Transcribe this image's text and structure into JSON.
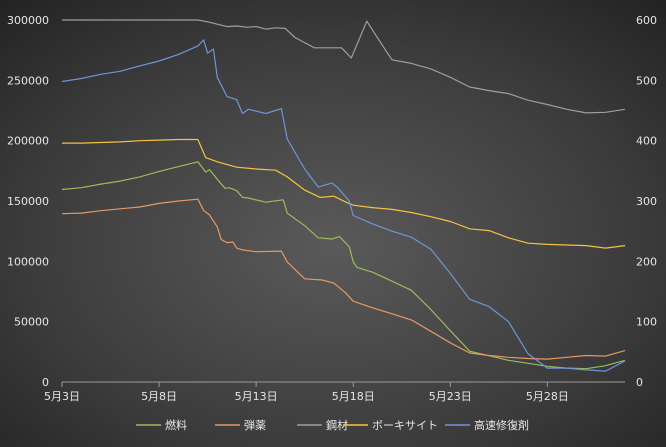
{
  "chart_data": {
    "type": "line",
    "title": "",
    "xlabel": "",
    "ylabel": "",
    "x_start": "5/3",
    "x_end": "6/1",
    "x_ticks": [
      "5月3日",
      "5月8日",
      "5月13日",
      "5月18日",
      "5月23日",
      "5月28日"
    ],
    "y_left_lim": [
      0,
      300000
    ],
    "y_left_ticks": [
      "0",
      "50000",
      "100000",
      "150000",
      "200000",
      "250000",
      "300000"
    ],
    "y_right_lim": [
      0,
      600
    ],
    "y_right_ticks": [
      "0",
      "100",
      "200",
      "300",
      "400",
      "500",
      "600"
    ],
    "grid": false,
    "legend_position": "bottom",
    "series": [
      {
        "name": "燃料",
        "axis": "left",
        "color": "#9bbb59",
        "points": [
          [
            "5/3",
            159500
          ],
          [
            "5/4",
            161000
          ],
          [
            "5/5",
            164000
          ],
          [
            "5/6",
            166500
          ],
          [
            "5/7",
            170000
          ],
          [
            "5/8",
            174500
          ],
          [
            "5/9",
            178500
          ],
          [
            "5/10",
            182500
          ],
          [
            "5/10.4",
            174000
          ],
          [
            "5/10.6",
            176000
          ],
          [
            "5/11",
            168000
          ],
          [
            "5/11.4",
            160500
          ],
          [
            "5/11.6",
            161000
          ],
          [
            "5/12",
            158500
          ],
          [
            "5/12.3",
            153000
          ],
          [
            "5/12.6",
            152500
          ],
          [
            "5/13.5",
            149000
          ],
          [
            "5/14.4",
            151000
          ],
          [
            "5/14.6",
            140000
          ],
          [
            "5/15.5",
            129500
          ],
          [
            "5/16.2",
            119500
          ],
          [
            "5/16.9",
            118500
          ],
          [
            "5/17.3",
            120500
          ],
          [
            "5/17.8",
            112000
          ],
          [
            "5/18",
            99500
          ],
          [
            "5/18.2",
            95000
          ],
          [
            "5/19",
            91000
          ],
          [
            "5/20",
            83500
          ],
          [
            "5/21",
            76000
          ],
          [
            "5/22",
            60000
          ],
          [
            "5/23",
            42500
          ],
          [
            "5/24",
            25500
          ],
          [
            "5/26",
            18000
          ],
          [
            "5/28",
            13000
          ],
          [
            "5/29",
            11500
          ],
          [
            "5/30",
            11000
          ],
          [
            "5/31",
            13500
          ],
          [
            "6/1",
            18000
          ]
        ]
      },
      {
        "name": "弾薬",
        "axis": "left",
        "color": "#e59866",
        "points": [
          [
            "5/3",
            139500
          ],
          [
            "5/4",
            140000
          ],
          [
            "5/5",
            142000
          ],
          [
            "5/6",
            143500
          ],
          [
            "5/7",
            145000
          ],
          [
            "5/8",
            148000
          ],
          [
            "5/9",
            150000
          ],
          [
            "5/10",
            151500
          ],
          [
            "5/10.3",
            142000
          ],
          [
            "5/10.6",
            138500
          ],
          [
            "5/11",
            128500
          ],
          [
            "5/11.2",
            118000
          ],
          [
            "5/11.5",
            115500
          ],
          [
            "5/11.8",
            116000
          ],
          [
            "5/12",
            111000
          ],
          [
            "5/12.3",
            109500
          ],
          [
            "5/13",
            108000
          ],
          [
            "5/14.3",
            108500
          ],
          [
            "5/14.6",
            99500
          ],
          [
            "5/15.5",
            85500
          ],
          [
            "5/16.4",
            84500
          ],
          [
            "5/17",
            82000
          ],
          [
            "5/17.6",
            74000
          ],
          [
            "5/18",
            67000
          ],
          [
            "5/19",
            61500
          ],
          [
            "5/20",
            56500
          ],
          [
            "5/21",
            51500
          ],
          [
            "5/22",
            42000
          ],
          [
            "5/23",
            32500
          ],
          [
            "5/24",
            24000
          ],
          [
            "5/25",
            22000
          ],
          [
            "5/26",
            20500
          ],
          [
            "5/27",
            19500
          ],
          [
            "5/28",
            19000
          ],
          [
            "5/29",
            20500
          ],
          [
            "5/30",
            22000
          ],
          [
            "5/31",
            21500
          ],
          [
            "6/1",
            26000
          ]
        ]
      },
      {
        "name": "鋼材",
        "axis": "left",
        "color": "#9e9e9e",
        "points": [
          [
            "5/3",
            300000
          ],
          [
            "5/4",
            300000
          ],
          [
            "5/5",
            300000
          ],
          [
            "5/6",
            300000
          ],
          [
            "5/7",
            300000
          ],
          [
            "5/8",
            300000
          ],
          [
            "5/9",
            300000
          ],
          [
            "5/10",
            300000
          ],
          [
            "5/10.5",
            298500
          ],
          [
            "5/11",
            296500
          ],
          [
            "5/11.5",
            294500
          ],
          [
            "5/12",
            295000
          ],
          [
            "5/12.5",
            294000
          ],
          [
            "5/13",
            294500
          ],
          [
            "5/13.5",
            292500
          ],
          [
            "5/14",
            293500
          ],
          [
            "5/14.5",
            293000
          ],
          [
            "5/15",
            285500
          ],
          [
            "5/16",
            277000
          ],
          [
            "5/17",
            277000
          ],
          [
            "5/17.4",
            277000
          ],
          [
            "5/17.9",
            268500
          ],
          [
            "5/18.7",
            299000
          ],
          [
            "5/19.4",
            281500
          ],
          [
            "5/20",
            267000
          ],
          [
            "5/21",
            264000
          ],
          [
            "5/22",
            259500
          ],
          [
            "5/23",
            252500
          ],
          [
            "5/24",
            244500
          ],
          [
            "5/25",
            241500
          ],
          [
            "5/26",
            239000
          ],
          [
            "5/27",
            233500
          ],
          [
            "5/28",
            230000
          ],
          [
            "5/29",
            226000
          ],
          [
            "5/30",
            223000
          ],
          [
            "5/31",
            223500
          ],
          [
            "6/1",
            226000
          ]
        ]
      },
      {
        "name": "ボーキサイト",
        "axis": "right",
        "color": "#f5c242",
        "points": [
          [
            "5/3",
            396
          ],
          [
            "5/4",
            396
          ],
          [
            "5/5",
            397
          ],
          [
            "5/6",
            398
          ],
          [
            "5/7",
            400
          ],
          [
            "5/8",
            401
          ],
          [
            "5/9",
            402
          ],
          [
            "5/10",
            402
          ],
          [
            "5/10.4",
            372
          ],
          [
            "5/11",
            365
          ],
          [
            "5/12",
            356
          ],
          [
            "5/13",
            353
          ],
          [
            "5/14",
            351
          ],
          [
            "5/14.6",
            340
          ],
          [
            "5/15.5",
            318
          ],
          [
            "5/16.3",
            306
          ],
          [
            "5/17",
            308
          ],
          [
            "5/17.7",
            297
          ],
          [
            "5/18",
            293
          ],
          [
            "5/19",
            289
          ],
          [
            "5/20",
            286
          ],
          [
            "5/21",
            281
          ],
          [
            "5/22",
            274
          ],
          [
            "5/23",
            266
          ],
          [
            "5/24",
            254
          ],
          [
            "5/25",
            251
          ],
          [
            "5/26",
            239
          ],
          [
            "5/27",
            230
          ],
          [
            "5/28",
            228
          ],
          [
            "5/29",
            227
          ],
          [
            "5/30",
            226
          ],
          [
            "5/31",
            222
          ],
          [
            "6/1",
            226
          ]
        ]
      },
      {
        "name": "高速修復剤",
        "axis": "right",
        "color": "#6f95d6",
        "points": [
          [
            "5/3",
            498
          ],
          [
            "5/4",
            503
          ],
          [
            "5/5",
            510
          ],
          [
            "5/6",
            515
          ],
          [
            "5/7",
            524
          ],
          [
            "5/8",
            532
          ],
          [
            "5/9",
            543
          ],
          [
            "5/10",
            557
          ],
          [
            "5/10.3",
            567
          ],
          [
            "5/10.5",
            545
          ],
          [
            "5/10.8",
            552
          ],
          [
            "5/11",
            505
          ],
          [
            "5/11.5",
            473
          ],
          [
            "5/12",
            468
          ],
          [
            "5/12.3",
            445
          ],
          [
            "5/12.6",
            452
          ],
          [
            "5/13.5",
            445
          ],
          [
            "5/14.3",
            453
          ],
          [
            "5/14.6",
            403
          ],
          [
            "5/15.5",
            353
          ],
          [
            "5/16.2",
            323
          ],
          [
            "5/16.9",
            330
          ],
          [
            "5/17.2",
            322
          ],
          [
            "5/17.8",
            300
          ],
          [
            "5/18",
            276
          ],
          [
            "5/19",
            262
          ],
          [
            "5/20",
            250
          ],
          [
            "5/21",
            240
          ],
          [
            "5/22",
            220
          ],
          [
            "5/23",
            180
          ],
          [
            "5/24",
            137
          ],
          [
            "5/25",
            125
          ],
          [
            "5/26",
            100
          ],
          [
            "5/27",
            47
          ],
          [
            "5/28",
            23
          ],
          [
            "5/29",
            23
          ],
          [
            "5/30",
            20
          ],
          [
            "5/31",
            18
          ],
          [
            "6/1",
            35
          ]
        ]
      }
    ]
  }
}
